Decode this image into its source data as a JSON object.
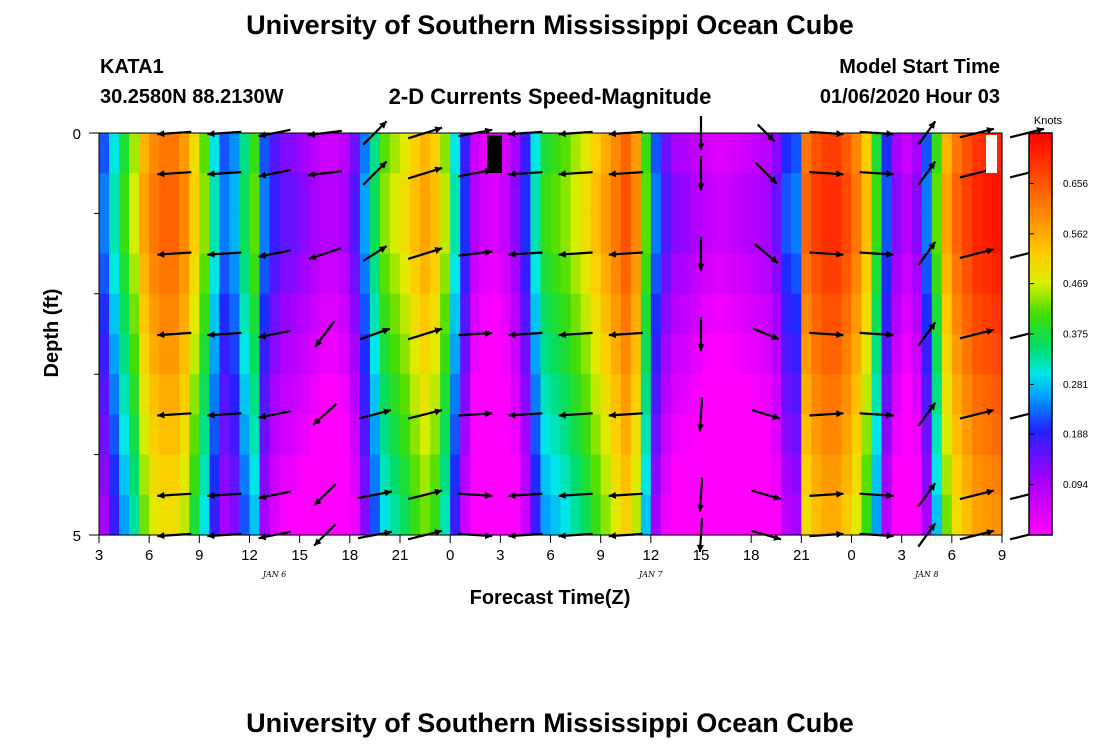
{
  "page": {
    "title": "University of Southern Mississippi Ocean Cube",
    "footer_title": "University of Southern Mississippi Ocean Cube",
    "station_id": "KATA1",
    "station_coords": "30.2580N 88.2130W",
    "plot_title": "2-D Currents Speed-Magnitude",
    "model_label": "Model Start Time",
    "model_time": "01/06/2020 Hour 03"
  },
  "chart_data": {
    "type": "heatmap",
    "title": "2-D Currents Speed-Magnitude",
    "xlabel": "Forecast Time(Z)",
    "ylabel": "Depth (ft)",
    "ylim": [
      0,
      5
    ],
    "y_tick_labels": [
      "0",
      "5"
    ],
    "x_ticks": [
      "3",
      "6",
      "9",
      "12",
      "15",
      "18",
      "21",
      "0",
      "3",
      "6",
      "9",
      "12",
      "15",
      "18",
      "21",
      "0",
      "3",
      "6",
      "9"
    ],
    "date_labels": [
      {
        "label": "JAN 6",
        "tick_index": 3.5
      },
      {
        "label": "JAN 7",
        "tick_index": 11
      },
      {
        "label": "JAN 8",
        "tick_index": 16.5
      }
    ],
    "colorbar": {
      "unit": "Knots",
      "range": [
        0,
        0.75
      ],
      "tick_values": [
        "0.094",
        "0.188",
        "0.281",
        "0.375",
        "0.469",
        "0.562",
        "0.656"
      ]
    },
    "speed_columns": [
      0.22,
      0.3,
      0.38,
      0.45,
      0.55,
      0.6,
      0.62,
      0.62,
      0.58,
      0.5,
      0.42,
      0.3,
      0.22,
      0.25,
      0.34,
      0.4,
      0.22,
      0.16,
      0.13,
      0.12,
      0.1,
      0.08,
      0.06,
      0.06,
      0.08,
      0.14,
      0.24,
      0.34,
      0.42,
      0.45,
      0.48,
      0.52,
      0.55,
      0.52,
      0.44,
      0.3,
      0.18,
      0.06,
      0.03,
      0.02,
      0.05,
      0.1,
      0.18,
      0.3,
      0.38,
      0.4,
      0.42,
      0.45,
      0.48,
      0.52,
      0.56,
      0.6,
      0.64,
      0.58,
      0.4,
      0.22,
      0.14,
      0.1,
      0.09,
      0.07,
      0.05,
      0.04,
      0.04,
      0.05,
      0.06,
      0.07,
      0.08,
      0.12,
      0.2,
      0.22,
      0.62,
      0.66,
      0.68,
      0.68,
      0.65,
      0.6,
      0.52,
      0.38,
      0.2,
      0.1,
      0.06,
      0.1,
      0.22,
      0.4,
      0.55,
      0.62,
      0.66,
      0.69,
      0.7,
      0.71
    ],
    "depth_adjust": [
      0.0,
      0.02,
      0.02,
      0.0,
      -0.02,
      -0.04,
      -0.06,
      -0.08,
      -0.1,
      -0.12
    ],
    "vector_columns": [
      {
        "t": 1.5,
        "rows": [
          [
            -0.8,
            0.05
          ],
          [
            -0.8,
            0.05
          ],
          [
            -0.8,
            0.05
          ],
          [
            -0.8,
            0.05
          ],
          [
            -0.8,
            0.05
          ],
          [
            -0.8,
            0.05
          ],
          [
            -0.8,
            0.05
          ]
        ]
      },
      {
        "t": 2.5,
        "rows": [
          [
            -0.8,
            0.05
          ],
          [
            -0.8,
            0.05
          ],
          [
            -0.8,
            0.05
          ],
          [
            -0.8,
            0.05
          ],
          [
            -0.8,
            0.05
          ],
          [
            -0.8,
            0.05
          ],
          [
            -0.8,
            0.05
          ]
        ]
      },
      {
        "t": 3.5,
        "rows": [
          [
            -0.75,
            0.15
          ],
          [
            -0.75,
            0.15
          ],
          [
            -0.75,
            0.15
          ],
          [
            -0.75,
            0.15
          ],
          [
            -0.75,
            0.15
          ],
          [
            -0.75,
            0.15
          ],
          [
            -0.75,
            0.15
          ]
        ]
      },
      {
        "t": 4.5,
        "rows": [
          [
            -0.8,
            0.1
          ],
          [
            -0.8,
            0.1
          ],
          [
            -0.75,
            0.25
          ],
          [
            -0.45,
            0.6
          ],
          [
            -0.55,
            0.5
          ],
          [
            -0.5,
            0.5
          ],
          [
            -0.5,
            0.5
          ]
        ]
      },
      {
        "t": 5.5,
        "rows": [
          [
            0.55,
            -0.55
          ],
          [
            0.55,
            -0.55
          ],
          [
            0.55,
            -0.35
          ],
          [
            0.7,
            -0.25
          ],
          [
            0.75,
            -0.2
          ],
          [
            0.8,
            -0.15
          ],
          [
            0.8,
            -0.15
          ]
        ]
      },
      {
        "t": 6.5,
        "rows": [
          [
            0.8,
            -0.25
          ],
          [
            0.8,
            -0.25
          ],
          [
            0.8,
            -0.25
          ],
          [
            0.8,
            -0.25
          ],
          [
            0.8,
            -0.2
          ],
          [
            0.8,
            -0.2
          ],
          [
            0.8,
            -0.2
          ]
        ]
      },
      {
        "t": 7.5,
        "rows": [
          [
            0.8,
            -0.15
          ],
          [
            0.8,
            -0.15
          ],
          [
            0.8,
            -0.1
          ],
          [
            0.8,
            -0.05
          ],
          [
            0.8,
            -0.05
          ],
          [
            0.8,
            0.05
          ],
          [
            0.8,
            0.05
          ]
        ]
      },
      {
        "t": 8.5,
        "rows": [
          [
            -0.8,
            0.05
          ],
          [
            -0.8,
            0.05
          ],
          [
            -0.8,
            0.05
          ],
          [
            -0.8,
            0.05
          ],
          [
            -0.8,
            0.05
          ],
          [
            -0.8,
            0.05
          ],
          [
            -0.8,
            0.05
          ]
        ]
      },
      {
        "t": 9.5,
        "rows": [
          [
            -0.8,
            0.05
          ],
          [
            -0.8,
            0.05
          ],
          [
            -0.8,
            0.05
          ],
          [
            -0.8,
            0.05
          ],
          [
            -0.8,
            0.05
          ],
          [
            -0.8,
            0.05
          ],
          [
            -0.8,
            0.05
          ]
        ]
      },
      {
        "t": 10.5,
        "rows": [
          [
            -0.8,
            0.05
          ],
          [
            -0.8,
            0.05
          ],
          [
            -0.8,
            0.05
          ],
          [
            -0.8,
            0.05
          ],
          [
            -0.8,
            0.05
          ],
          [
            -0.8,
            0.05
          ],
          [
            -0.8,
            0.05
          ]
        ]
      },
      {
        "t": 12,
        "rows": [
          [
            0,
            0.8
          ],
          [
            0,
            0.8
          ],
          [
            0,
            0.8
          ],
          [
            0,
            0.8
          ],
          [
            -0.05,
            0.8
          ],
          [
            -0.05,
            0.8
          ],
          [
            -0.05,
            0.8
          ]
        ]
      },
      {
        "t": 13.3,
        "rows": [
          [
            0.4,
            0.4
          ],
          [
            0.5,
            0.5
          ],
          [
            0.55,
            0.45
          ],
          [
            0.6,
            0.25
          ],
          [
            0.65,
            0.2
          ],
          [
            0.7,
            0.2
          ],
          [
            0.7,
            0.2
          ]
        ]
      },
      {
        "t": 14.5,
        "rows": [
          [
            0.8,
            0.05
          ],
          [
            0.8,
            0.05
          ],
          [
            0.8,
            0.05
          ],
          [
            0.8,
            0.05
          ],
          [
            0.8,
            -0.05
          ],
          [
            0.8,
            -0.05
          ],
          [
            0.8,
            -0.05
          ]
        ]
      },
      {
        "t": 15.5,
        "rows": [
          [
            0.8,
            0.05
          ],
          [
            0.8,
            0.05
          ],
          [
            0.8,
            0.05
          ],
          [
            0.8,
            0.05
          ],
          [
            0.8,
            0.05
          ],
          [
            0.8,
            0.05
          ],
          [
            0.8,
            0.05
          ]
        ]
      },
      {
        "t": 16.5,
        "rows": [
          [
            0.4,
            -0.55
          ],
          [
            0.4,
            -0.55
          ],
          [
            0.4,
            -0.55
          ],
          [
            0.4,
            -0.55
          ],
          [
            0.4,
            -0.55
          ],
          [
            0.4,
            -0.55
          ],
          [
            0.4,
            -0.55
          ]
        ]
      },
      {
        "t": 17.5,
        "rows": [
          [
            0.8,
            -0.2
          ],
          [
            0.8,
            -0.2
          ],
          [
            0.8,
            -0.2
          ],
          [
            0.8,
            -0.2
          ],
          [
            0.8,
            -0.2
          ],
          [
            0.8,
            -0.2
          ],
          [
            0.8,
            -0.2
          ]
        ]
      },
      {
        "t": 18.5,
        "rows": [
          [
            0.8,
            -0.2
          ],
          [
            0.8,
            -0.2
          ],
          [
            0.8,
            -0.2
          ],
          [
            0.8,
            -0.2
          ],
          [
            0.8,
            -0.2
          ],
          [
            0.8,
            -0.2
          ],
          [
            0.8,
            -0.2
          ]
        ]
      }
    ],
    "vector_rows": [
      0,
      0.5,
      1.5,
      2.5,
      3.5,
      4.5,
      5.0
    ]
  }
}
